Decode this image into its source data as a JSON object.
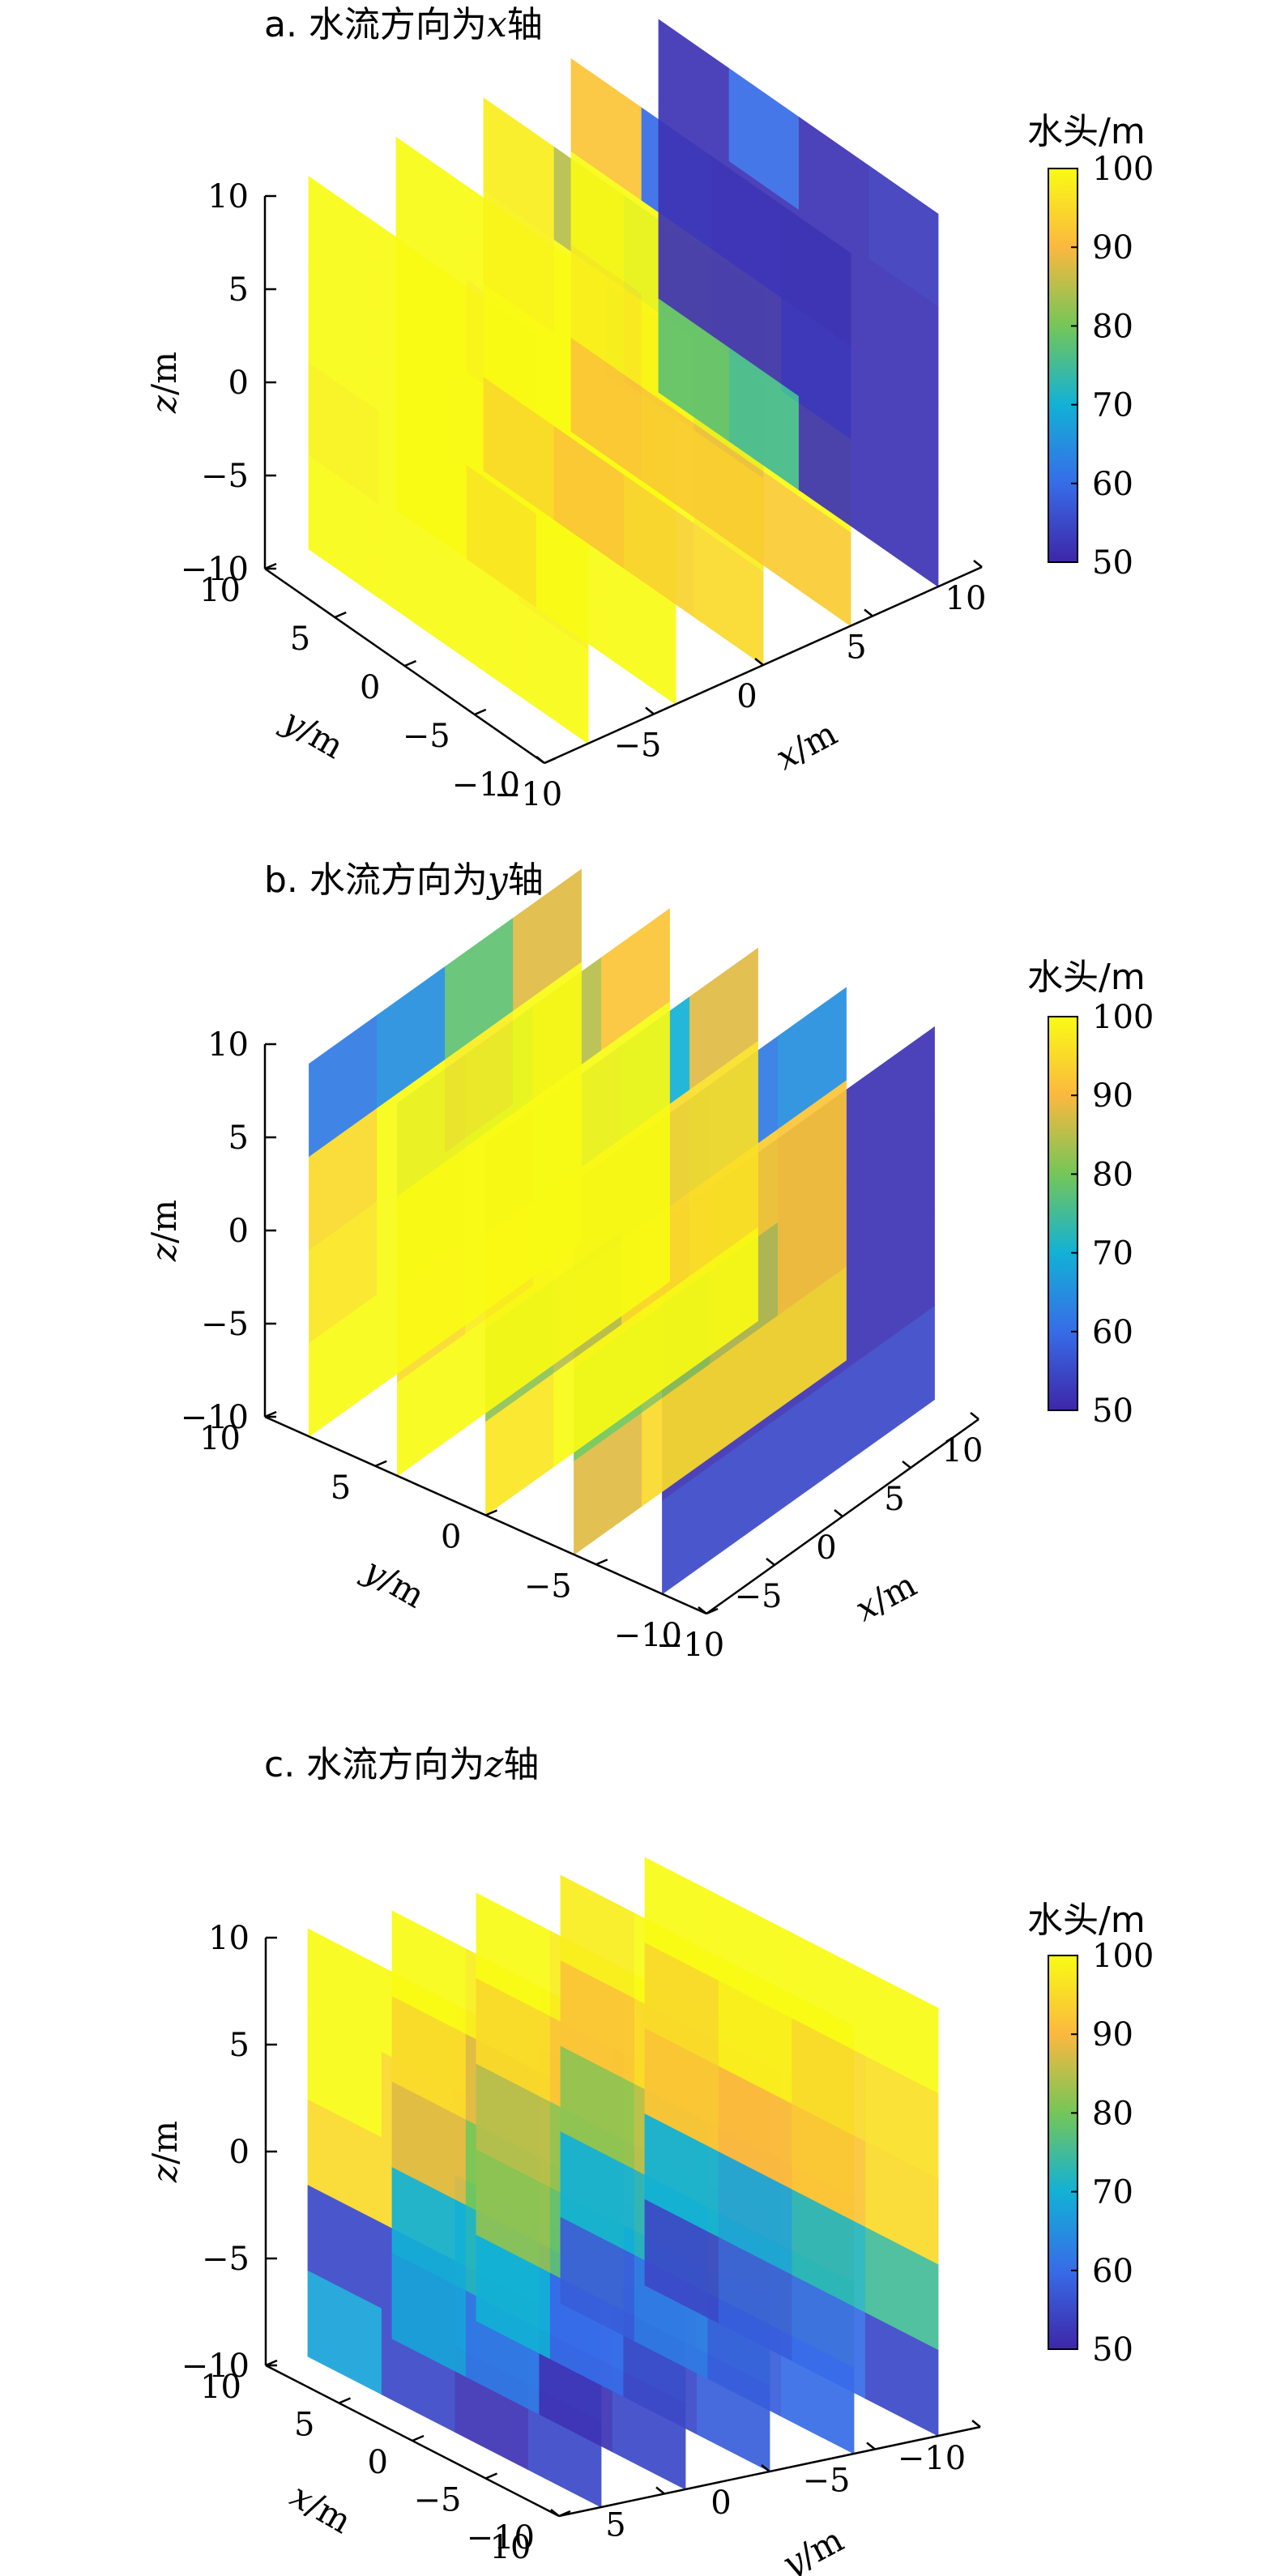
{
  "chart_data": [
    {
      "type": "heatmap",
      "title": "a. 水流方向为x轴",
      "title_prefix": "a. 水流方向为",
      "title_axis": "x",
      "title_suffix": "轴",
      "xlabel": "x/m",
      "ylabel": "y/m",
      "zlabel": "z/m",
      "xlim": [
        -10,
        10
      ],
      "ylim": [
        -10,
        10
      ],
      "zlim": [
        -10,
        10
      ],
      "x_ticks": [
        "−10",
        "−5",
        "0",
        "5",
        "10"
      ],
      "y_ticks": [
        "10",
        "5",
        "0",
        "−5",
        "−10"
      ],
      "z_ticks": [
        "10",
        "5",
        "0",
        "−5",
        "−10"
      ],
      "colorbar": {
        "title": "水头/m",
        "min": 50,
        "max": 100,
        "ticks": [
          "100",
          "90",
          "80",
          "70",
          "60",
          "50"
        ]
      },
      "slice_axis": "x",
      "slices": [
        {
          "z_values": [
            [
              100,
              100,
              100,
              100
            ],
            [
              100,
              99,
              100,
              100
            ],
            [
              99,
              100,
              100,
              99
            ],
            [
              100,
              100,
              100,
              100
            ]
          ]
        },
        {
          "z_values": [
            [
              75,
              100,
              100,
              100
            ],
            [
              100,
              100,
              99,
              100
            ],
            [
              100,
              100,
              100,
              100
            ],
            [
              100,
              100,
              97,
              100
            ]
          ]
        },
        {
          "z_values": [
            [
              52,
              65,
              85,
              98
            ],
            [
              55,
              90,
              100,
              99
            ],
            [
              98,
              100,
              100,
              100
            ],
            [
              95,
              94,
              92,
              95
            ]
          ]
        },
        {
          "z_values": [
            [
              52,
              55,
              60,
              92
            ],
            [
              60,
              95,
              100,
              100
            ],
            [
              100,
              100,
              100,
              98
            ],
            [
              93,
              93,
              93,
              92
            ]
          ]
        },
        {
          "z_values": [
            [
              53,
              52,
              60,
              52
            ],
            [
              52,
              52,
              52,
              52
            ],
            [
              52,
              52,
              52,
              52
            ],
            [
              52,
              52,
              75,
              78
            ]
          ]
        }
      ]
    },
    {
      "type": "heatmap",
      "title": "b. 水流方向为y轴",
      "title_prefix": "b. 水流方向为",
      "title_axis": "y",
      "title_suffix": "轴",
      "xlabel": "x/m",
      "ylabel": "y/m",
      "zlabel": "z/m",
      "xlim": [
        -10,
        10
      ],
      "ylim": [
        -10,
        10
      ],
      "zlim": [
        -10,
        10
      ],
      "x_ticks": [
        "−10",
        "−5",
        "0",
        "5",
        "10"
      ],
      "y_ticks": [
        "10",
        "5",
        "0",
        "−5",
        "−10"
      ],
      "z_ticks": [
        "10",
        "5",
        "0",
        "−5",
        "−10"
      ],
      "colorbar": {
        "title": "水头/m",
        "min": 50,
        "max": 100,
        "ticks": [
          "100",
          "90",
          "80",
          "70",
          "60",
          "50"
        ]
      },
      "slice_axis": "y",
      "slices": [
        {
          "z_values": [
            [
              53,
              52,
              52,
              52
            ],
            [
              52,
              52,
              52,
              52
            ],
            [
              52,
              52,
              52,
              52
            ],
            [
              55,
              55,
              55,
              55
            ]
          ]
        },
        {
          "z_values": [
            [
              55,
              60,
              62,
              65
            ],
            [
              88,
              90,
              93,
              92
            ],
            [
              80,
              82,
              85,
              92
            ],
            [
              88,
              95,
              95,
              95
            ]
          ]
        },
        {
          "z_values": [
            [
              58,
              62,
              70,
              88
            ],
            [
              92,
              95,
              95,
              96
            ],
            [
              82,
              85,
              95,
              96
            ],
            [
              97,
              100,
              100,
              100
            ]
          ]
        },
        {
          "z_values": [
            [
              62,
              72,
              85,
              92
            ],
            [
              96,
              98,
              100,
              100
            ],
            [
              95,
              98,
              100,
              100
            ],
            [
              100,
              100,
              100,
              100
            ]
          ]
        },
        {
          "z_values": [
            [
              62,
              65,
              78,
              88
            ],
            [
              95,
              100,
              98,
              100
            ],
            [
              97,
              100,
              100,
              100
            ],
            [
              100,
              100,
              100,
              100
            ]
          ]
        }
      ]
    },
    {
      "type": "heatmap",
      "title": "c. 水流方向为z轴",
      "title_prefix": "c. 水流方向为",
      "title_axis": "z",
      "title_suffix": "轴",
      "xlabel": "y/m",
      "ylabel": "x/m",
      "zlabel": "z/m",
      "xlim": [
        -10,
        10
      ],
      "ylim": [
        -10,
        10
      ],
      "zlim": [
        -10,
        10
      ],
      "x_ticks": [
        "10",
        "5",
        "0",
        "−5",
        "−10"
      ],
      "y_ticks": [
        "10",
        "5",
        "0",
        "−5",
        "−10"
      ],
      "z_ticks": [
        "10",
        "5",
        "0",
        "−5",
        "−10"
      ],
      "colorbar": {
        "title": "水头/m",
        "min": 50,
        "max": 100,
        "ticks": [
          "100",
          "90",
          "80",
          "70",
          "60",
          "50"
        ]
      },
      "slice_axis": "x",
      "slices": [
        {
          "z_values": [
            [
              95,
              95,
              100,
              100
            ],
            [
              95,
              92,
              95,
              100
            ],
            [
              72,
              72,
              95,
              95
            ],
            [
              60,
              58,
              55,
              55
            ],
            [
              55,
              52,
              55,
              68
            ]
          ]
        },
        {
          "z_values": [
            [
              100,
              96,
              98,
              100
            ],
            [
              96,
              92,
              88,
              95
            ],
            [
              88,
              85,
              80,
              88
            ],
            [
              65,
              60,
              72,
              70
            ],
            [
              55,
              52,
              62,
              68
            ]
          ]
        },
        {
          "z_values": [
            [
              100,
              100,
              98,
              100
            ],
            [
              96,
              98,
              92,
              95
            ],
            [
              90,
              88,
              82,
              85
            ],
            [
              72,
              65,
              78,
              82
            ],
            [
              58,
              55,
              60,
              70
            ]
          ]
        },
        {
          "z_values": [
            [
              100,
              100,
              100,
              98
            ],
            [
              98,
              96,
              95,
              92
            ],
            [
              92,
              88,
              85,
              82
            ],
            [
              80,
              78,
              72,
              70
            ],
            [
              60,
              58,
              62,
              58
            ]
          ]
        },
        {
          "z_values": [
            [
              100,
              100,
              100,
              100
            ],
            [
              96,
              95,
              98,
              95
            ],
            [
              95,
              92,
              90,
              92
            ],
            [
              75,
              72,
              68,
              70
            ],
            [
              55,
              60,
              58,
              55
            ]
          ]
        }
      ]
    }
  ]
}
